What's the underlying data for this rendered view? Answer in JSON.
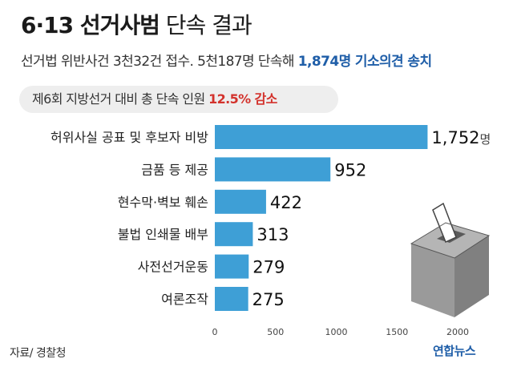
{
  "header": {
    "title_bold": "6·13 선거사범",
    "title_light": "단속 결과",
    "subtitle_main": "선거법 위반사건 3천32건 접수. 5천187명 단속해",
    "subtitle_highlight": "1,874명 기소의견 송치",
    "callout_main": "제6회 지방선거 대비 총 단속 인원",
    "callout_highlight": "12.5% 감소"
  },
  "chart_data": {
    "type": "bar",
    "orientation": "horizontal",
    "categories": [
      "허위사실 공표 및 후보자 비방",
      "금품 등 제공",
      "현수막·벽보 훼손",
      "불법 인쇄물 배부",
      "사전선거운동",
      "여론조작"
    ],
    "values": [
      1752,
      952,
      422,
      313,
      279,
      275
    ],
    "value_labels": [
      "1,752",
      "952",
      "422",
      "313",
      "279",
      "275"
    ],
    "unit": "명",
    "xlim": [
      0,
      2000
    ],
    "xticks": [
      "0",
      "500",
      "1000",
      "1500",
      "2000"
    ],
    "bar_color": "#3e9fd6",
    "grid": false
  },
  "footer": {
    "source": "자료/ 경찰청",
    "logo": "연합뉴스"
  },
  "colors": {
    "accent_blue": "#1f5ea8",
    "accent_red": "#d3322c",
    "bar": "#3e9fd6"
  },
  "icons": [
    "ballot-box-icon"
  ]
}
